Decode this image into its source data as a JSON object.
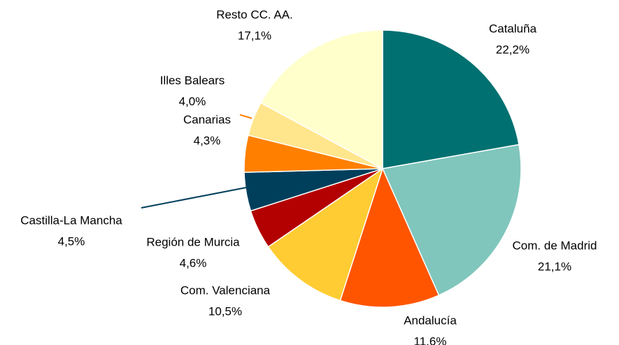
{
  "chart_data": {
    "type": "pie",
    "categories": [
      "Cataluña",
      "Com. de Madrid",
      "Andalucía",
      "Com. Valenciana",
      "Región de Murcia",
      "Castilla-La Mancha",
      "Canarias",
      "Illes Balears",
      "Resto CC. AA."
    ],
    "values": [
      22.2,
      21.1,
      11.6,
      10.5,
      4.6,
      4.5,
      4.3,
      4.0,
      17.1
    ],
    "value_labels": [
      "22,2%",
      "21,1%",
      "11,6%",
      "10,5%",
      "4,6%",
      "4,5%",
      "4,3%",
      "4,0%",
      "17,1%"
    ],
    "colors": [
      "#007070",
      "#80c6bd",
      "#ff5500",
      "#ffcc33",
      "#b30000",
      "#003f5c",
      "#ff8000",
      "#ffe68c",
      "#ffffcc"
    ]
  }
}
